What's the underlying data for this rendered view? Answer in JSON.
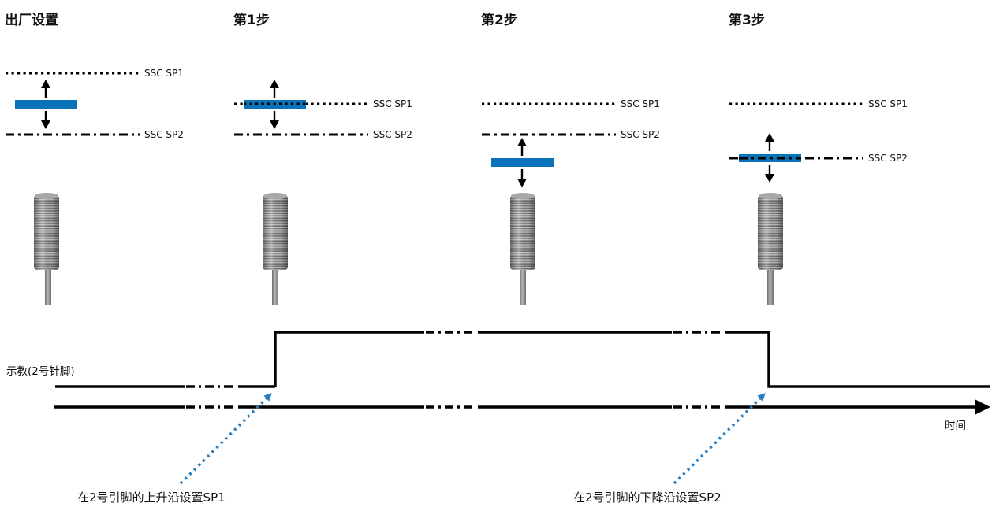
{
  "steps": [
    {
      "title": "出厂设置"
    },
    {
      "title": "第1步"
    },
    {
      "title": "第2步"
    },
    {
      "title": "第3步"
    }
  ],
  "thresholds": {
    "sp1_label": "SSC SP1",
    "sp2_label": "SSC SP2"
  },
  "timing": {
    "signal_label": "示教(2号针脚)",
    "axis_label": "时间"
  },
  "annotations": {
    "rising_edge": "在2号引脚的上升沿设置SP1",
    "falling_edge": "在2号引脚的下降沿设置SP2"
  },
  "colors": {
    "target": "#0a72b8",
    "line": "#000000",
    "pointer": "#2b7fc0",
    "sensor": "#8c8c8c"
  }
}
